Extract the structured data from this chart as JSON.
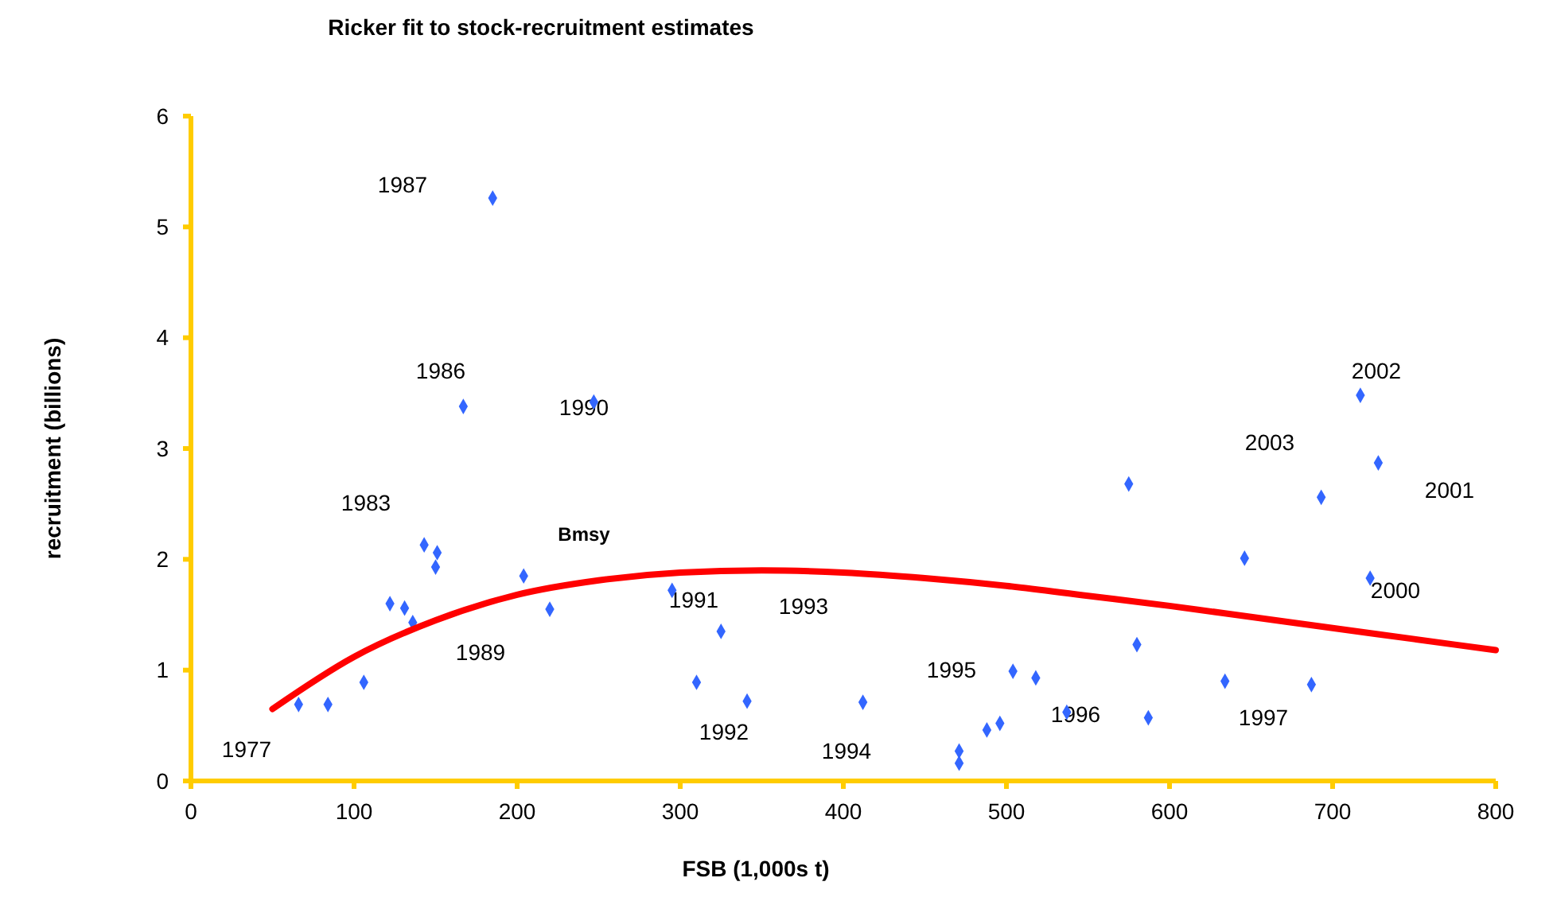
{
  "chart_data": {
    "type": "scatter",
    "title": "Ricker fit to stock-recruitment estimates",
    "xlabel": "FSB (1,000s  t)",
    "ylabel": "recruitment  (billions)",
    "xlim": [
      0,
      800
    ],
    "xticks": [
      0,
      100,
      200,
      300,
      400,
      500,
      600,
      700,
      800
    ],
    "ylim": [
      0,
      6
    ],
    "yticks": [
      0,
      1,
      2,
      3,
      4,
      5,
      6
    ],
    "grid": false,
    "series": [
      {
        "type": "scatter",
        "color": "#3366ff",
        "marker": "diamond",
        "x": [
          66,
          84,
          106,
          122,
          131,
          136,
          143,
          151,
          150,
          167,
          185,
          204,
          220,
          247,
          295,
          310,
          325,
          341,
          412,
          471,
          471,
          488,
          496,
          504,
          518,
          537,
          575,
          580,
          587,
          634,
          646,
          687,
          693,
          717,
          723,
          728
        ],
        "values": [
          0.69,
          0.69,
          0.89,
          1.6,
          1.56,
          1.43,
          2.13,
          2.06,
          1.93,
          3.38,
          5.26,
          1.85,
          1.55,
          3.42,
          1.72,
          0.89,
          1.35,
          0.72,
          0.71,
          0.27,
          0.16,
          0.46,
          0.52,
          0.99,
          0.93,
          0.62,
          2.68,
          1.23,
          0.57,
          0.9,
          2.01,
          0.87,
          2.56,
          3.48,
          1.83,
          2.87
        ]
      },
      {
        "type": "line",
        "color": "#ff0000",
        "marker": "none",
        "line_style": "solid",
        "x": [
          50,
          100,
          150,
          200,
          250,
          300,
          350,
          400,
          450,
          500,
          550,
          600,
          650,
          700,
          750,
          800
        ],
        "values": [
          0.65,
          1.12,
          1.45,
          1.68,
          1.81,
          1.88,
          1.9,
          1.88,
          1.83,
          1.76,
          1.67,
          1.58,
          1.48,
          1.38,
          1.28,
          1.18
        ]
      }
    ],
    "annotations": [
      "1987",
      "1986",
      "1990",
      "1983",
      "Bmsy",
      "1989",
      "1977",
      "1991",
      "1992",
      "1993",
      "1994",
      "1995",
      "1996",
      "1997",
      "2000",
      "2001",
      "2002",
      "2003"
    ]
  }
}
